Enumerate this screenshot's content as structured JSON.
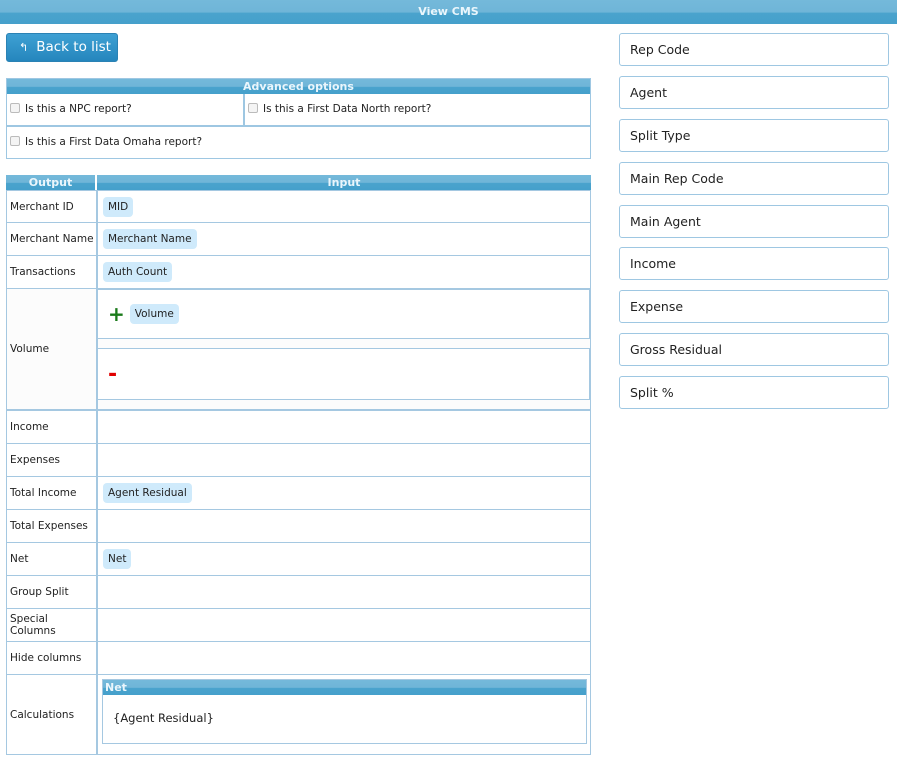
{
  "title": "View CMS",
  "back_label": "Back to list",
  "advanced": {
    "title": "Advanced options",
    "options": [
      "Is this a NPC report?",
      "Is this a First Data North report?",
      "Is this a First Data Omaha report?"
    ]
  },
  "table": {
    "headers": [
      "Output",
      "Input"
    ],
    "rows": [
      {
        "label": "Merchant ID",
        "value": "MID"
      },
      {
        "label": "Merchant Name",
        "value": "Merchant Name"
      },
      {
        "label": "Transactions",
        "value": "Auth Count"
      },
      {
        "label": "Volume",
        "plus": "+",
        "plus_value": "Volume",
        "minus": "-"
      },
      {
        "label": "Income",
        "value": ""
      },
      {
        "label": "Expenses",
        "value": ""
      },
      {
        "label": "Total Income",
        "value": "Agent Residual"
      },
      {
        "label": "Total Expenses",
        "value": ""
      },
      {
        "label": "Net",
        "value": "Net"
      },
      {
        "label": "Group Split",
        "value": ""
      },
      {
        "label": "Special Columns",
        "value": ""
      },
      {
        "label": "Hide columns",
        "value": ""
      },
      {
        "label": "Calculations",
        "calc_title": "Net",
        "calc_formula": "{Agent Residual}"
      }
    ]
  },
  "fields": [
    "Rep Code",
    "Agent",
    "Split Type",
    "Main Rep Code",
    "Main Agent",
    "Income",
    "Expense",
    "Gross Residual",
    "Split %"
  ],
  "colors": {
    "header": "#4aa3cd",
    "chip": "#cfeafb",
    "plus": "#1a7a1a",
    "minus": "#e00000"
  }
}
